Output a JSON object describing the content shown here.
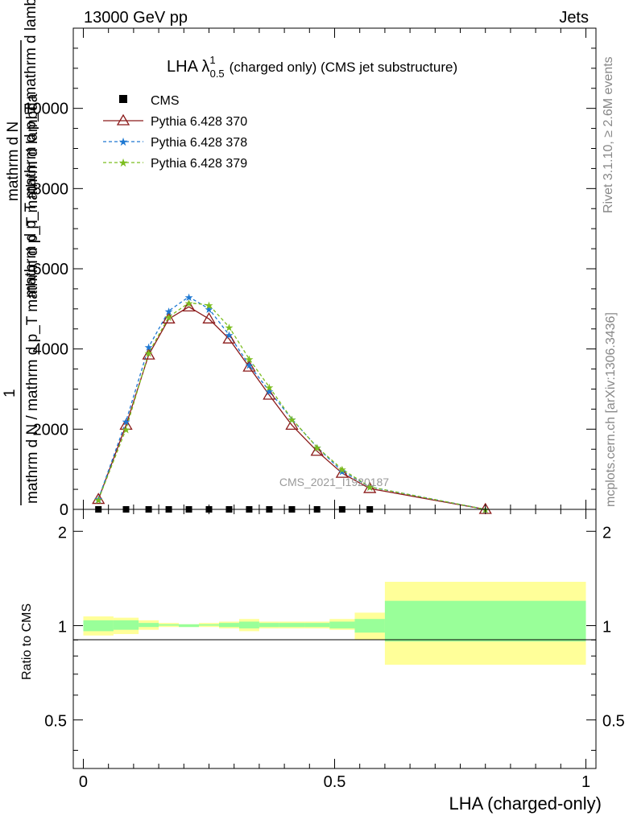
{
  "header": {
    "left": "13000 GeV pp",
    "right": "Jets"
  },
  "side_labels": {
    "rivet": "Rivet 3.1.10, ≥ 2.6M events",
    "mcplots": "mcplots.cern.ch [arXiv:1306.3436]"
  },
  "chart_data": {
    "type": "line",
    "title": "LHA λ^1_0.5 (charged only) (CMS jet substructure)",
    "title_main": "LHA λ",
    "title_sup": "1",
    "title_sub": "0.5",
    "title_rest": "(charged only) (CMS jet substructure)",
    "watermark": "CMS_2021_I1920187",
    "xlabel": "LHA (charged-only)",
    "ylabel_numerator": "1",
    "ylabel_denominator": "mathrm d N / mathrm d p_T mathrm d p_T mathrm d lambda",
    "ylabel_top_lines": [
      "mathrm d N",
      "mathrm d p_T mathrm d p_T mathrm d lambda"
    ],
    "ratio_ylabel": "Ratio to CMS",
    "xlim": [
      -0.02,
      1.02
    ],
    "ylim": [
      0,
      12000
    ],
    "ratio_ylim": [
      0.35,
      2.35
    ],
    "x_ticks": [
      {
        "value": 0,
        "label": "0"
      },
      {
        "value": 0.5,
        "label": "0.5"
      },
      {
        "value": 1,
        "label": "1"
      }
    ],
    "y_ticks": [
      {
        "value": 0,
        "label": "0"
      },
      {
        "value": 2000,
        "label": "2000"
      },
      {
        "value": 4000,
        "label": "4000"
      },
      {
        "value": 6000,
        "label": "6000"
      },
      {
        "value": 8000,
        "label": "8000"
      },
      {
        "value": 10000,
        "label": "10000"
      }
    ],
    "ratio_ticks": [
      {
        "value": 0.5,
        "label": "0.5"
      },
      {
        "value": 1,
        "label": "1"
      },
      {
        "value": 2,
        "label": "2"
      }
    ],
    "legend_position": "top-left",
    "x": [
      0.03,
      0.085,
      0.13,
      0.17,
      0.21,
      0.25,
      0.29,
      0.33,
      0.37,
      0.415,
      0.465,
      0.515,
      0.57,
      0.8
    ],
    "series": [
      {
        "name": "CMS",
        "marker": "square",
        "color": "#000000",
        "values": [
          0,
          0,
          0,
          0,
          0,
          0,
          0,
          0,
          0,
          0,
          0,
          0,
          0,
          0
        ]
      },
      {
        "name": "Pythia 6.428 370",
        "marker": "triangle",
        "color": "#8b1a1a",
        "dash": "solid",
        "values": [
          250,
          2100,
          3850,
          4750,
          5050,
          4750,
          4250,
          3550,
          2850,
          2100,
          1450,
          900,
          520,
          0
        ]
      },
      {
        "name": "Pythia 6.428 378",
        "marker": "star",
        "color": "#1e78d2",
        "dash": "dashed",
        "values": [
          260,
          2200,
          4050,
          4950,
          5300,
          5000,
          4350,
          3600,
          2950,
          2250,
          1550,
          950,
          560,
          0
        ]
      },
      {
        "name": "Pythia 6.428 379",
        "marker": "star",
        "color": "#7bbd1e",
        "dash": "dashed",
        "values": [
          240,
          2000,
          3900,
          4800,
          5150,
          5100,
          4550,
          3750,
          3050,
          2250,
          1550,
          1000,
          560,
          0
        ]
      }
    ],
    "ratio_bands": {
      "edges": [
        0,
        0.06,
        0.11,
        0.15,
        0.19,
        0.23,
        0.27,
        0.31,
        0.35,
        0.39,
        0.44,
        0.49,
        0.54,
        0.6,
        1.0
      ],
      "yellow_lo": [
        0.93,
        0.94,
        0.97,
        0.99,
        0.99,
        0.99,
        0.98,
        0.96,
        0.98,
        0.98,
        0.98,
        0.97,
        0.9,
        0.75
      ],
      "yellow_hi": [
        1.07,
        1.06,
        1.04,
        1.02,
        1.01,
        1.02,
        1.03,
        1.05,
        1.03,
        1.03,
        1.03,
        1.05,
        1.1,
        1.38
      ],
      "green_lo": [
        0.96,
        0.97,
        0.99,
        1.0,
        0.99,
        1.0,
        0.99,
        0.98,
        0.99,
        0.99,
        0.99,
        0.98,
        0.95,
        0.89
      ],
      "green_hi": [
        1.04,
        1.04,
        1.02,
        1.01,
        1.01,
        1.01,
        1.02,
        1.03,
        1.02,
        1.02,
        1.02,
        1.03,
        1.05,
        1.2
      ],
      "yellow_color": "#ffff99",
      "green_color": "#99ff99"
    }
  }
}
